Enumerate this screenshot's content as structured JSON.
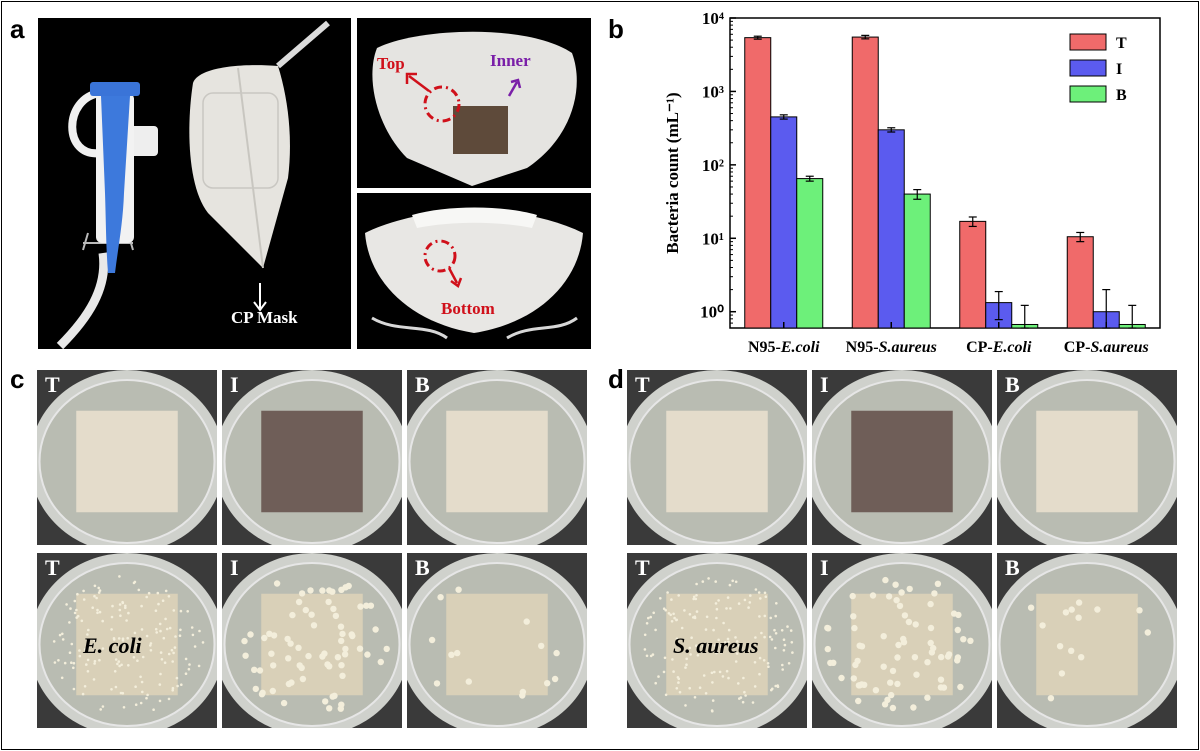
{
  "panels": {
    "a": "a",
    "b": "b",
    "c": "c",
    "d": "d"
  },
  "panel_a": {
    "mask_label": "CP Mask",
    "top_label": "Top",
    "inner_label": "Inner",
    "bottom_label": "Bottom"
  },
  "panel_c": {
    "row1": [
      "T",
      "I",
      "B"
    ],
    "row2": [
      "T",
      "I",
      "B"
    ],
    "species": "E. coli"
  },
  "panel_d": {
    "row1": [
      "T",
      "I",
      "B"
    ],
    "row2": [
      "T",
      "I",
      "B"
    ],
    "species": "S. aureus"
  },
  "colors": {
    "T": "#f06a6a",
    "I": "#5b5bef",
    "B": "#6df07a",
    "annotation_red": "#d0101a",
    "annotation_purple": "#7a1fa8"
  },
  "chart_data": {
    "type": "bar",
    "title": "",
    "xlabel": "",
    "ylabel": "Bacteria count (mL⁻¹)",
    "yscale": "log",
    "ylim": [
      0.6,
      10000
    ],
    "ytick_labels": [
      "10⁰",
      "10¹",
      "10²",
      "10³",
      "10⁴"
    ],
    "ytick_values": [
      1,
      10,
      100,
      1000,
      10000
    ],
    "categories": [
      {
        "prefix": "N95-",
        "organism": "E.coli"
      },
      {
        "prefix": "N95-",
        "organism": "S.aureus"
      },
      {
        "prefix": "CP-",
        "organism": "E.coli"
      },
      {
        "prefix": "CP-",
        "organism": "S.aureus"
      }
    ],
    "series": [
      {
        "name": "T",
        "values": [
          5400,
          5500,
          17,
          10.5
        ],
        "errors": [
          250,
          300,
          2.5,
          1.5
        ]
      },
      {
        "name": "I",
        "values": [
          450,
          300,
          1.33,
          1.0
        ],
        "errors": [
          30,
          20,
          0.55,
          1.0
        ]
      },
      {
        "name": "B",
        "values": [
          65,
          40,
          0.67,
          0.67
        ],
        "errors": [
          5,
          6,
          0.55,
          0.55
        ]
      }
    ],
    "legend_position": "top-right",
    "grid": false
  }
}
